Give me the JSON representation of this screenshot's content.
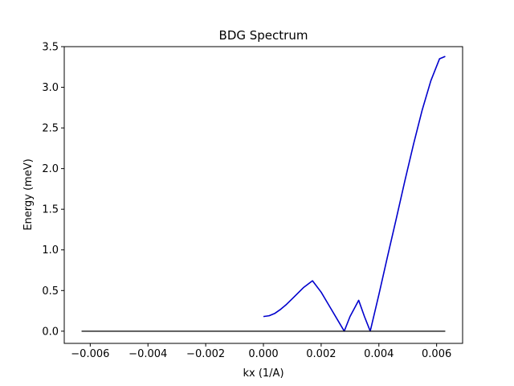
{
  "chart_data": {
    "type": "line",
    "title": "BDG Spectrum",
    "xlabel": "kx (1/A)",
    "ylabel": "Energy (meV)",
    "xlim": [
      -0.0069,
      0.0069
    ],
    "ylim": [
      -0.15,
      3.5
    ],
    "xticks": [
      -0.006,
      -0.004,
      -0.002,
      0.0,
      0.002,
      0.004,
      0.006
    ],
    "xtick_labels": [
      "−0.006",
      "−0.004",
      "−0.002",
      "0.000",
      "0.002",
      "0.004",
      "0.006"
    ],
    "yticks": [
      0.0,
      0.5,
      1.0,
      1.5,
      2.0,
      2.5,
      3.0,
      3.5
    ],
    "ytick_labels": [
      "0.0",
      "0.5",
      "1.0",
      "1.5",
      "2.0",
      "2.5",
      "3.0",
      "3.5"
    ],
    "grid": false,
    "legend": "none",
    "series": [
      {
        "color": "#0000cd",
        "x": [
          0.0,
          0.0002,
          0.0004,
          0.0006,
          0.0008,
          0.001,
          0.0012,
          0.0014,
          0.0017,
          0.002,
          0.0023,
          0.0026,
          0.0028,
          0.003,
          0.0033,
          0.0035,
          0.0037,
          0.004,
          0.0043,
          0.0046,
          0.0049,
          0.0052,
          0.0055,
          0.0058,
          0.0061,
          0.0063
        ],
        "y": [
          0.18,
          0.19,
          0.22,
          0.27,
          0.33,
          0.4,
          0.47,
          0.54,
          0.62,
          0.48,
          0.3,
          0.12,
          0.0,
          0.18,
          0.38,
          0.18,
          0.0,
          0.45,
          0.92,
          1.38,
          1.85,
          2.3,
          2.72,
          3.08,
          3.35,
          3.38
        ]
      },
      {
        "color": "#000000",
        "x": [
          -0.0063,
          0.0063
        ],
        "y": [
          0.0,
          0.0
        ]
      }
    ]
  }
}
